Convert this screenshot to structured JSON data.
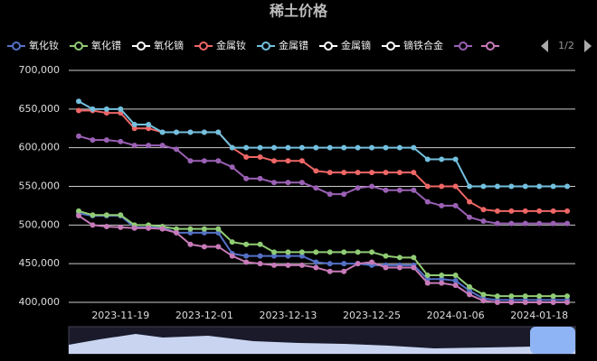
{
  "chart_data": {
    "type": "line",
    "title": "稀土价格",
    "legend_page": "1/2",
    "categories": [
      null,
      null,
      null,
      "2023-11-19",
      null,
      null,
      null,
      null,
      null,
      "2023-12-01",
      null,
      null,
      null,
      null,
      null,
      "2023-12-13",
      null,
      null,
      null,
      null,
      null,
      "2023-12-25",
      null,
      null,
      null,
      null,
      null,
      "2024-01-06",
      null,
      null,
      null,
      null,
      null,
      "2024-01-18",
      null,
      null
    ],
    "ylim": [
      400000,
      700000
    ],
    "yticks": [
      {
        "value": 400000,
        "label": "400,000"
      },
      {
        "value": 450000,
        "label": "450,000"
      },
      {
        "value": 500000,
        "label": "500,000"
      },
      {
        "value": 550000,
        "label": "550,000"
      },
      {
        "value": 600000,
        "label": "600,000"
      },
      {
        "value": 650000,
        "label": "650,000"
      },
      {
        "value": 700000,
        "label": "700,000"
      }
    ],
    "grid": true,
    "series": [
      {
        "name": "氧化钕",
        "color": "#5470c6",
        "values": [
          515000,
          512000,
          512000,
          512000,
          497000,
          497000,
          497000,
          490000,
          490000,
          490000,
          490000,
          463000,
          460000,
          460000,
          460000,
          460000,
          460000,
          452000,
          450000,
          450000,
          450000,
          448000,
          448000,
          448000,
          448000,
          430000,
          430000,
          428000,
          415000,
          405000,
          403000,
          403000,
          403000,
          403000,
          403000,
          403000
        ]
      },
      {
        "name": "氧化镨",
        "color": "#91cc75",
        "values": [
          518000,
          513000,
          513000,
          513000,
          500000,
          500000,
          498000,
          495000,
          495000,
          495000,
          495000,
          478000,
          475000,
          475000,
          465000,
          465000,
          465000,
          465000,
          465000,
          465000,
          465000,
          465000,
          460000,
          458000,
          458000,
          435000,
          435000,
          435000,
          420000,
          410000,
          408000,
          408000,
          408000,
          408000,
          408000,
          408000
        ]
      },
      {
        "name": "氧化镝",
        "color": "#ffffff"
      },
      {
        "name": "金属钕",
        "color": "#ee6666",
        "values": [
          648000,
          648000,
          645000,
          645000,
          625000,
          625000,
          620000,
          620000,
          620000,
          620000,
          620000,
          600000,
          588000,
          588000,
          583000,
          583000,
          583000,
          570000,
          568000,
          568000,
          568000,
          568000,
          568000,
          568000,
          568000,
          550000,
          550000,
          550000,
          530000,
          520000,
          518000,
          518000,
          518000,
          518000,
          518000,
          518000
        ]
      },
      {
        "name": "金属镨",
        "color": "#73c0de",
        "values": [
          660000,
          650000,
          650000,
          650000,
          630000,
          630000,
          620000,
          620000,
          620000,
          620000,
          620000,
          600000,
          600000,
          600000,
          600000,
          600000,
          600000,
          600000,
          600000,
          600000,
          600000,
          600000,
          600000,
          600000,
          600000,
          585000,
          585000,
          585000,
          550000,
          550000,
          550000,
          550000,
          550000,
          550000,
          550000,
          550000
        ]
      },
      {
        "name": "金属镝",
        "color": "#ffffff"
      },
      {
        "name": "镝铁合金",
        "color": "#ffffff"
      },
      {
        "color": "#9a60b4",
        "values": [
          615000,
          610000,
          610000,
          608000,
          603000,
          603000,
          603000,
          598000,
          583000,
          583000,
          583000,
          575000,
          560000,
          560000,
          555000,
          555000,
          555000,
          548000,
          540000,
          540000,
          548000,
          550000,
          545000,
          545000,
          545000,
          530000,
          525000,
          525000,
          510000,
          505000,
          502000,
          502000,
          502000,
          502000,
          502000,
          502000
        ]
      },
      {
        "color": "#c77ab8",
        "values": [
          512000,
          500000,
          498000,
          497000,
          496000,
          496000,
          495000,
          490000,
          475000,
          472000,
          472000,
          460000,
          452000,
          450000,
          448000,
          448000,
          448000,
          445000,
          440000,
          440000,
          450000,
          452000,
          445000,
          445000,
          445000,
          425000,
          425000,
          422000,
          410000,
          402000,
          400000,
          400000,
          400000,
          400000,
          400000,
          400000
        ]
      }
    ]
  }
}
